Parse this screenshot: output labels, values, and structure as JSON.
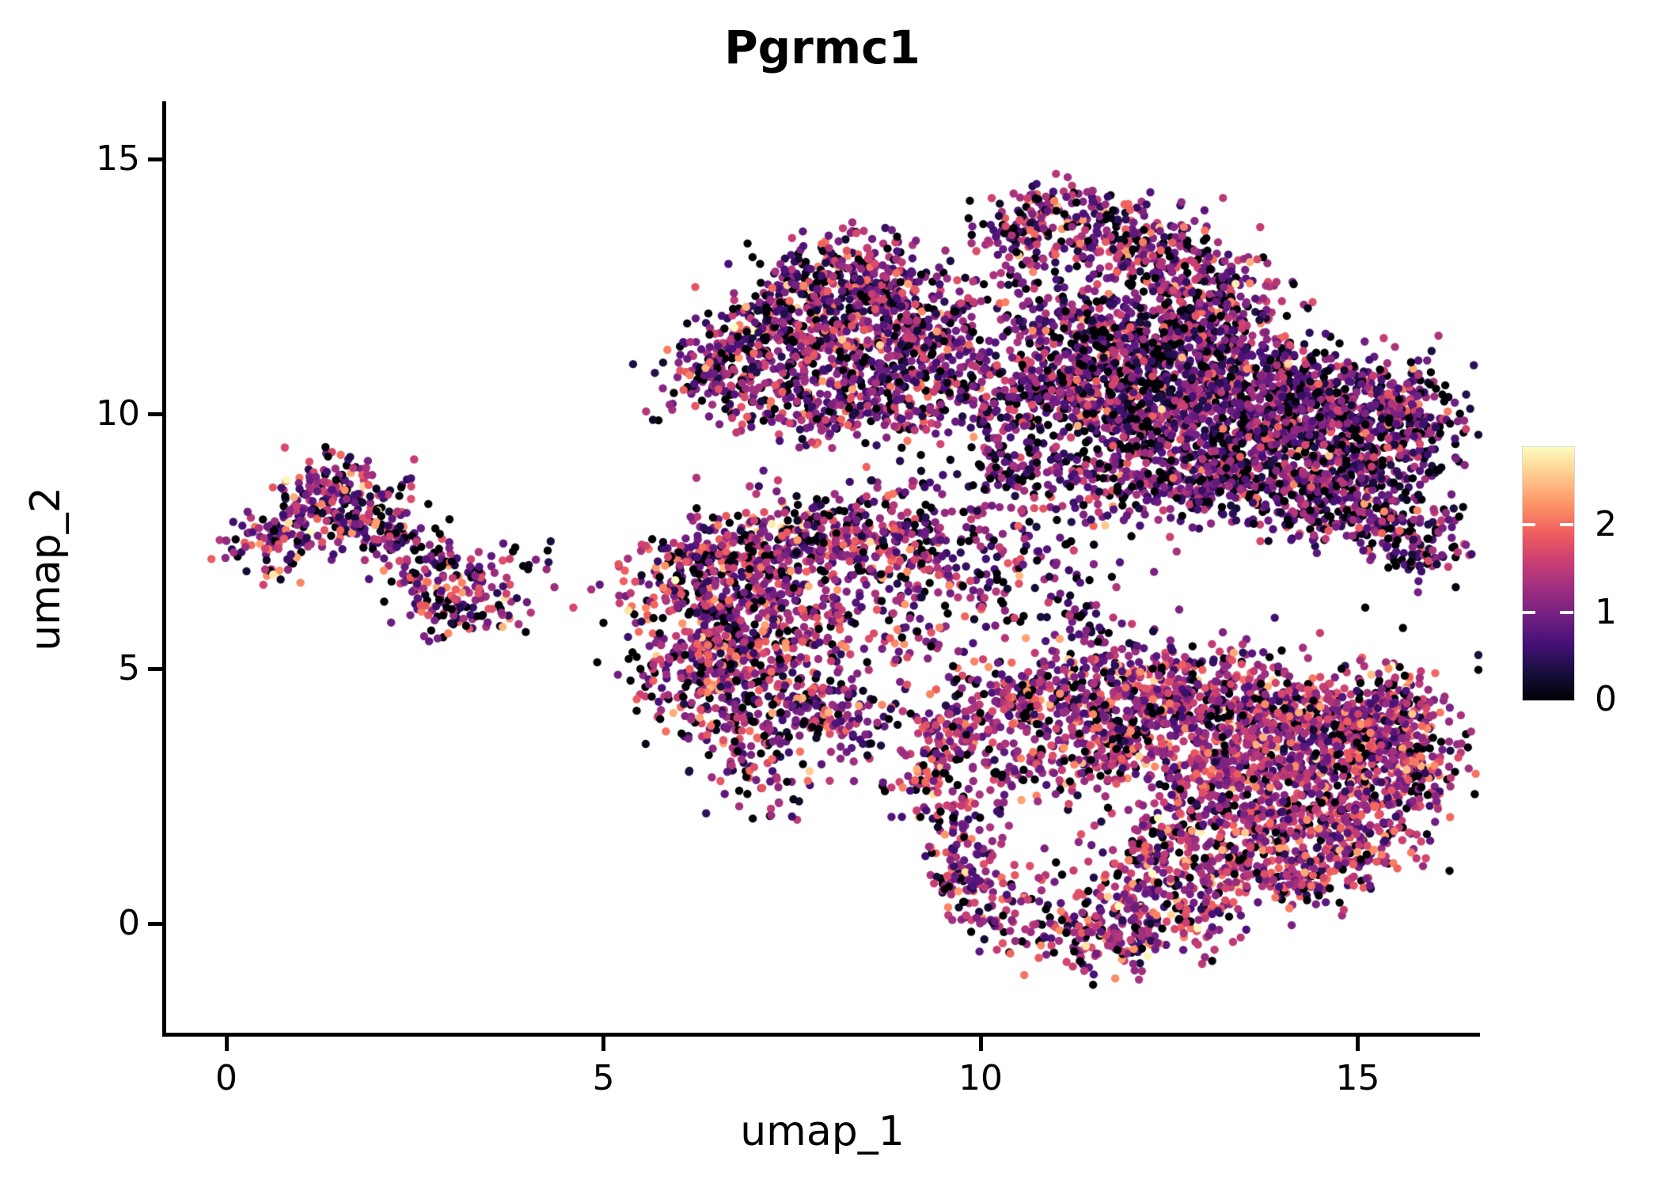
{
  "chart_data": {
    "type": "scatter",
    "title": "Pgrmc1",
    "xlabel": "umap_1",
    "ylabel": "umap_2",
    "xlim": [
      -0.85,
      16.6
    ],
    "ylim": [
      -2.15,
      16.1
    ],
    "xticks": [
      0,
      5,
      10,
      15
    ],
    "yticks": [
      0,
      5,
      10,
      15
    ],
    "grid": false,
    "background": "#ffffff",
    "marker_diameter_px": 10.4,
    "seed": 7,
    "colorbar": {
      "ticks": [
        0,
        1,
        2
      ],
      "vmin": 0,
      "vmax": 2.9,
      "colormap": "magma",
      "palette": [
        "#000004",
        "#180f3e",
        "#451077",
        "#721f81",
        "#9f2f7f",
        "#cd4071",
        "#f1605d",
        "#fd9668",
        "#feca8d",
        "#fcfdbf"
      ]
    },
    "clusters": [
      {
        "name": "left-small-cluster",
        "style": {
          "black_frac": 0.15,
          "mu": 1.15,
          "sigma": 0.65
        },
        "blobs": [
          [
            0.55,
            7.45,
            0.3,
            0.28,
            60
          ],
          [
            1.0,
            7.9,
            0.4,
            0.4,
            90
          ],
          [
            1.5,
            8.35,
            0.4,
            0.35,
            90
          ],
          [
            2.0,
            8.0,
            0.4,
            0.35,
            70
          ],
          [
            1.3,
            8.75,
            0.3,
            0.25,
            30
          ],
          [
            2.4,
            7.3,
            0.3,
            0.3,
            40
          ],
          [
            2.75,
            6.6,
            0.28,
            0.35,
            60
          ],
          [
            3.05,
            6.15,
            0.28,
            0.3,
            60
          ],
          [
            3.4,
            6.5,
            0.3,
            0.3,
            35
          ],
          [
            3.55,
            7.1,
            0.4,
            0.22,
            25
          ]
        ]
      },
      {
        "name": "middle-left-cluster",
        "style": {
          "black_frac": 0.16,
          "mu": 1.2,
          "sigma": 0.6
        },
        "blobs": [
          [
            5.9,
            6.6,
            0.35,
            0.5,
            80
          ],
          [
            6.5,
            7.1,
            0.45,
            0.45,
            130
          ],
          [
            7.3,
            7.4,
            0.55,
            0.5,
            170
          ],
          [
            8.2,
            7.6,
            0.55,
            0.45,
            160
          ],
          [
            8.9,
            7.3,
            0.4,
            0.4,
            80
          ],
          [
            6.6,
            6.0,
            0.5,
            0.5,
            140
          ],
          [
            7.5,
            6.3,
            0.5,
            0.45,
            130
          ],
          [
            6.2,
            5.0,
            0.45,
            0.5,
            130
          ],
          [
            7.1,
            5.3,
            0.5,
            0.45,
            130
          ],
          [
            6.6,
            4.2,
            0.45,
            0.45,
            110
          ],
          [
            7.6,
            4.4,
            0.45,
            0.4,
            100
          ],
          [
            8.1,
            3.9,
            0.4,
            0.35,
            70
          ],
          [
            7.0,
            3.4,
            0.35,
            0.35,
            60
          ],
          [
            7.3,
            2.7,
            0.25,
            0.3,
            30
          ],
          [
            8.8,
            5.8,
            0.6,
            0.5,
            70
          ]
        ]
      },
      {
        "name": "top-middle-cluster",
        "style": {
          "black_frac": 0.17,
          "mu": 1.1,
          "sigma": 0.6
        },
        "blobs": [
          [
            8.35,
            13.1,
            0.35,
            0.28,
            70
          ],
          [
            7.9,
            12.5,
            0.5,
            0.4,
            150
          ],
          [
            8.8,
            12.4,
            0.45,
            0.4,
            130
          ],
          [
            7.2,
            11.7,
            0.5,
            0.45,
            160
          ],
          [
            8.3,
            11.4,
            0.55,
            0.5,
            200
          ],
          [
            9.2,
            11.6,
            0.45,
            0.45,
            130
          ],
          [
            6.8,
            10.6,
            0.45,
            0.45,
            130
          ],
          [
            7.9,
            10.3,
            0.55,
            0.45,
            170
          ],
          [
            9.0,
            10.3,
            0.45,
            0.4,
            130
          ],
          [
            6.4,
            11.0,
            0.25,
            0.35,
            50
          ],
          [
            9.7,
            10.9,
            0.35,
            0.4,
            70
          ]
        ]
      },
      {
        "name": "top-right-band",
        "style": {
          "black_frac": 0.16,
          "mu": 1.1,
          "sigma": 0.6
        },
        "blobs": [
          [
            11.0,
            14.1,
            0.4,
            0.25,
            70
          ],
          [
            11.7,
            13.6,
            0.5,
            0.35,
            130
          ],
          [
            12.4,
            13.1,
            0.5,
            0.4,
            140
          ],
          [
            10.5,
            13.4,
            0.35,
            0.3,
            70
          ],
          [
            13.0,
            12.5,
            0.45,
            0.4,
            120
          ]
        ]
      },
      {
        "name": "right-dense-mass",
        "style": {
          "black_frac": 0.2,
          "mu": 0.95,
          "sigma": 0.55
        },
        "blobs": [
          [
            11.0,
            11.9,
            0.5,
            0.5,
            150
          ],
          [
            12.0,
            11.5,
            0.55,
            0.5,
            200
          ],
          [
            13.0,
            11.8,
            0.5,
            0.45,
            170
          ],
          [
            11.0,
            10.7,
            0.6,
            0.5,
            220
          ],
          [
            12.2,
            10.8,
            0.6,
            0.5,
            250
          ],
          [
            13.4,
            10.8,
            0.6,
            0.5,
            260
          ],
          [
            14.5,
            10.4,
            0.6,
            0.5,
            280
          ],
          [
            15.5,
            10.0,
            0.45,
            0.45,
            200
          ],
          [
            11.7,
            9.9,
            0.55,
            0.45,
            200
          ],
          [
            12.9,
            9.8,
            0.6,
            0.5,
            260
          ],
          [
            14.1,
            9.5,
            0.6,
            0.5,
            280
          ],
          [
            15.2,
            9.1,
            0.5,
            0.45,
            220
          ],
          [
            13.4,
            8.7,
            0.5,
            0.45,
            180
          ],
          [
            14.4,
            8.3,
            0.45,
            0.4,
            150
          ],
          [
            15.4,
            7.9,
            0.45,
            0.35,
            130
          ],
          [
            15.9,
            7.3,
            0.3,
            0.3,
            60
          ],
          [
            10.4,
            9.8,
            0.4,
            0.55,
            90
          ],
          [
            10.5,
            8.9,
            0.35,
            0.4,
            60
          ],
          [
            11.6,
            8.7,
            0.45,
            0.4,
            110
          ],
          [
            12.5,
            8.6,
            0.4,
            0.35,
            90
          ],
          [
            9.6,
            7.6,
            0.9,
            0.7,
            150
          ],
          [
            10.3,
            6.6,
            0.8,
            0.6,
            90
          ],
          [
            11.5,
            5.85,
            0.18,
            0.25,
            25
          ]
        ]
      },
      {
        "name": "bottom-right-cluster",
        "style": {
          "black_frac": 0.12,
          "mu": 1.3,
          "sigma": 0.55
        },
        "blobs": [
          [
            9.6,
            3.7,
            0.4,
            0.45,
            110
          ],
          [
            10.4,
            4.3,
            0.5,
            0.45,
            150
          ],
          [
            11.4,
            4.6,
            0.5,
            0.45,
            170
          ],
          [
            12.4,
            4.7,
            0.5,
            0.45,
            170
          ],
          [
            13.4,
            4.5,
            0.5,
            0.45,
            180
          ],
          [
            14.4,
            4.1,
            0.5,
            0.45,
            190
          ],
          [
            15.2,
            3.7,
            0.45,
            0.45,
            180
          ],
          [
            15.4,
            4.4,
            0.4,
            0.4,
            110
          ],
          [
            15.7,
            3.0,
            0.35,
            0.45,
            140
          ],
          [
            12.0,
            3.7,
            0.5,
            0.45,
            160
          ],
          [
            13.0,
            3.6,
            0.5,
            0.45,
            170
          ],
          [
            14.0,
            3.1,
            0.5,
            0.5,
            200
          ],
          [
            15.0,
            2.5,
            0.45,
            0.45,
            170
          ],
          [
            13.1,
            2.4,
            0.45,
            0.45,
            150
          ],
          [
            14.1,
            1.9,
            0.45,
            0.45,
            160
          ],
          [
            15.0,
            1.5,
            0.4,
            0.4,
            120
          ],
          [
            12.4,
            1.5,
            0.4,
            0.45,
            120
          ],
          [
            13.3,
            1.0,
            0.4,
            0.4,
            120
          ],
          [
            14.3,
            0.9,
            0.35,
            0.35,
            90
          ],
          [
            12.0,
            0.5,
            0.35,
            0.4,
            90
          ],
          [
            12.8,
            0.1,
            0.35,
            0.35,
            80
          ],
          [
            11.9,
            -0.5,
            0.3,
            0.3,
            60
          ],
          [
            11.2,
            -0.2,
            0.3,
            0.35,
            60
          ],
          [
            10.5,
            0.3,
            0.3,
            0.45,
            60
          ],
          [
            9.9,
            1.1,
            0.3,
            0.5,
            60
          ],
          [
            9.6,
            2.2,
            0.3,
            0.45,
            60
          ],
          [
            9.3,
            3.0,
            0.25,
            0.35,
            40
          ],
          [
            9.75,
            0.75,
            0.2,
            0.3,
            45
          ],
          [
            10.6,
            2.9,
            0.35,
            0.35,
            50
          ],
          [
            11.3,
            3.3,
            0.4,
            0.35,
            80
          ]
        ]
      }
    ],
    "outlier_style": {
      "black_frac": 0.25,
      "mu": 1.0,
      "sigma": 0.7
    },
    "outliers": [
      [
        4.0,
        6.95
      ],
      [
        4.35,
        6.6
      ],
      [
        4.6,
        6.2
      ],
      [
        4.95,
        6.65
      ],
      [
        4.3,
        7.5
      ],
      [
        3.8,
        7.3
      ],
      [
        5.2,
        7.05
      ],
      [
        5.0,
        5.9
      ],
      [
        0.15,
        7.2
      ],
      [
        1.4,
        9.25
      ],
      [
        9.9,
        8.6
      ],
      [
        10.15,
        8.2
      ],
      [
        10.0,
        7.4
      ],
      [
        10.5,
        7.8
      ],
      [
        10.8,
        7.2
      ],
      [
        11.2,
        7.5
      ],
      [
        11.5,
        7.05
      ],
      [
        10.3,
        6.7
      ],
      [
        9.7,
        6.4
      ],
      [
        10.9,
        6.3
      ],
      [
        11.8,
        6.6
      ],
      [
        12.3,
        6.9
      ],
      [
        12.0,
        7.6
      ],
      [
        12.6,
        7.3
      ],
      [
        9.6,
        9.1
      ],
      [
        10.1,
        9.3
      ],
      [
        6.8,
        2.3
      ],
      [
        7.5,
        2.1
      ],
      [
        8.0,
        2.8
      ],
      [
        8.5,
        3.3
      ],
      [
        8.7,
        2.7
      ],
      [
        8.9,
        3.9
      ],
      [
        8.4,
        4.3
      ],
      [
        9.0,
        4.6
      ],
      [
        9.3,
        5.2
      ],
      [
        8.8,
        5.6
      ],
      [
        9.9,
        5.5
      ],
      [
        10.6,
        5.6
      ],
      [
        11.0,
        5.2
      ],
      [
        10.2,
        4.9
      ],
      [
        13.9,
        6.0
      ],
      [
        14.5,
        5.7
      ],
      [
        15.1,
        6.2
      ],
      [
        13.6,
        5.3
      ],
      [
        15.6,
        5.8
      ],
      [
        16.2,
        7.0
      ],
      [
        16.3,
        6.6
      ],
      [
        15.8,
        6.5
      ],
      [
        11.5,
        -1.0
      ],
      [
        12.1,
        -1.1
      ],
      [
        9.6,
        13.0
      ],
      [
        9.9,
        12.6
      ],
      [
        10.1,
        13.4
      ],
      [
        11.3,
        1.6
      ],
      [
        11.6,
        2.0
      ],
      [
        11.0,
        1.2
      ],
      [
        11.5,
        0.9
      ]
    ]
  }
}
